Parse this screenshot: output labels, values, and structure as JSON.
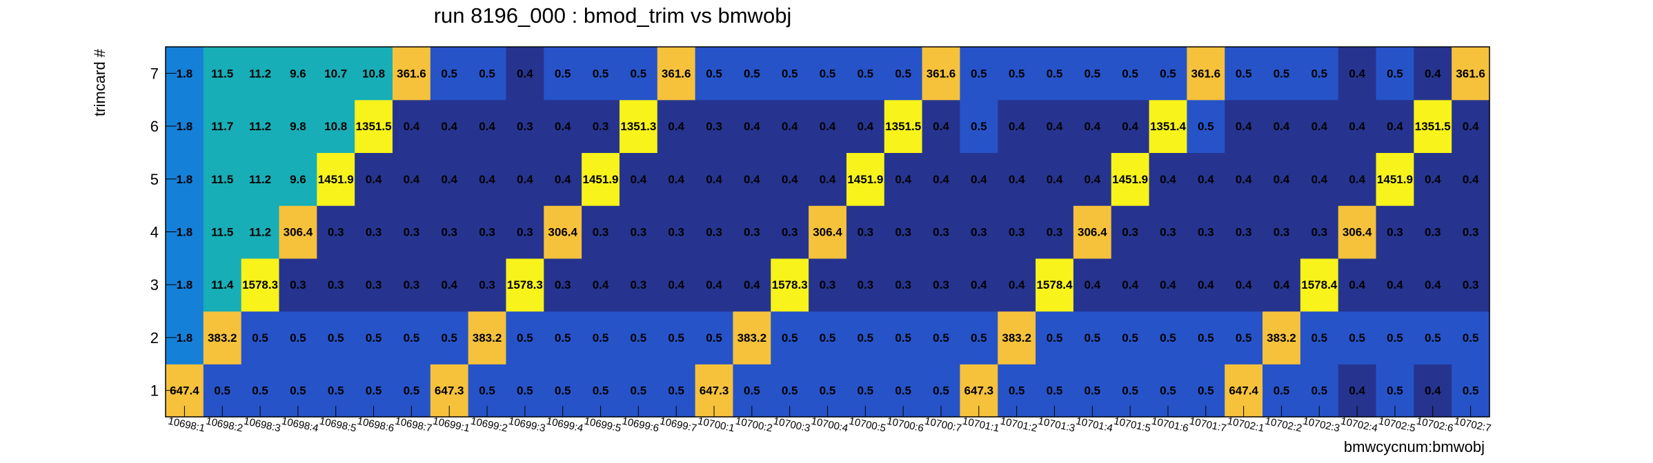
{
  "chart_data": {
    "type": "heatmap",
    "title": "run 8196_000 : bmod_trim vs bmwobj",
    "xlabel": "bmwcycnum:bmwobj",
    "ylabel": "trimcard #",
    "x_categories": [
      "10698:1",
      "10698:2",
      "10698:3",
      "10698:4",
      "10698:5",
      "10698:6",
      "10698:7",
      "10699:1",
      "10699:2",
      "10699:3",
      "10699:4",
      "10699:5",
      "10699:6",
      "10699:7",
      "10700:1",
      "10700:2",
      "10700:3",
      "10700:4",
      "10700:5",
      "10700:6",
      "10700:7",
      "10701:1",
      "10701:2",
      "10701:3",
      "10701:4",
      "10701:5",
      "10701:6",
      "10701:7",
      "10702:1",
      "10702:2",
      "10702:3",
      "10702:4",
      "10702:5",
      "10702:6",
      "10702:7"
    ],
    "y_categories": [
      "1",
      "2",
      "3",
      "4",
      "5",
      "6",
      "7"
    ],
    "values": [
      [
        647.4,
        0.5,
        0.5,
        0.5,
        0.5,
        0.5,
        0.5,
        647.3,
        0.5,
        0.5,
        0.5,
        0.5,
        0.5,
        0.5,
        647.3,
        0.5,
        0.5,
        0.5,
        0.5,
        0.5,
        0.5,
        647.3,
        0.5,
        0.5,
        0.5,
        0.5,
        0.5,
        0.5,
        647.4,
        0.5,
        0.5,
        0.4,
        0.5,
        0.4,
        0.5
      ],
      [
        1.8,
        383.2,
        0.5,
        0.5,
        0.5,
        0.5,
        0.5,
        0.5,
        383.2,
        0.5,
        0.5,
        0.5,
        0.5,
        0.5,
        0.5,
        383.2,
        0.5,
        0.5,
        0.5,
        0.5,
        0.5,
        0.5,
        383.2,
        0.5,
        0.5,
        0.5,
        0.5,
        0.5,
        0.5,
        383.2,
        0.5,
        0.5,
        0.5,
        0.5,
        0.5
      ],
      [
        1.8,
        11.4,
        1578.3,
        0.3,
        0.3,
        0.3,
        0.3,
        0.4,
        0.3,
        1578.3,
        0.3,
        0.4,
        0.3,
        0.4,
        0.4,
        0.4,
        1578.3,
        0.3,
        0.3,
        0.3,
        0.3,
        0.4,
        0.4,
        1578.4,
        0.4,
        0.4,
        0.4,
        0.4,
        0.4,
        0.4,
        1578.4,
        0.4,
        0.4,
        0.4,
        0.3
      ],
      [
        1.8,
        11.5,
        11.2,
        306.4,
        0.3,
        0.3,
        0.3,
        0.3,
        0.3,
        0.3,
        306.4,
        0.3,
        0.3,
        0.3,
        0.3,
        0.3,
        0.3,
        306.4,
        0.3,
        0.3,
        0.3,
        0.3,
        0.3,
        0.3,
        306.4,
        0.3,
        0.3,
        0.3,
        0.3,
        0.3,
        0.3,
        306.4,
        0.3,
        0.3,
        0.3
      ],
      [
        1.8,
        11.5,
        11.2,
        9.6,
        1451.9,
        0.4,
        0.4,
        0.4,
        0.4,
        0.4,
        0.4,
        1451.9,
        0.4,
        0.4,
        0.4,
        0.4,
        0.4,
        0.4,
        1451.9,
        0.4,
        0.4,
        0.4,
        0.4,
        0.4,
        0.4,
        1451.9,
        0.4,
        0.4,
        0.4,
        0.4,
        0.4,
        0.4,
        1451.9,
        0.4,
        0.4
      ],
      [
        1.8,
        11.7,
        11.2,
        9.8,
        10.8,
        1351.5,
        0.4,
        0.4,
        0.4,
        0.3,
        0.4,
        0.3,
        1351.3,
        0.4,
        0.3,
        0.4,
        0.4,
        0.4,
        0.4,
        1351.5,
        0.4,
        0.5,
        0.4,
        0.4,
        0.4,
        0.4,
        1351.4,
        0.5,
        0.4,
        0.4,
        0.4,
        0.4,
        0.4,
        1351.5,
        0.4
      ],
      [
        1.8,
        11.5,
        11.2,
        9.6,
        10.7,
        10.8,
        361.6,
        0.5,
        0.5,
        0.4,
        0.5,
        0.5,
        0.5,
        361.6,
        0.5,
        0.5,
        0.5,
        0.5,
        0.5,
        0.5,
        361.6,
        0.5,
        0.5,
        0.5,
        0.5,
        0.5,
        0.5,
        361.6,
        0.5,
        0.5,
        0.5,
        0.4,
        0.5,
        0.4,
        361.6
      ]
    ],
    "grid": false,
    "colormap": [
      "#26348f",
      "#2653c8",
      "#1580d8",
      "#18aeb7",
      "#f6c23c",
      "#f8f31a"
    ]
  }
}
